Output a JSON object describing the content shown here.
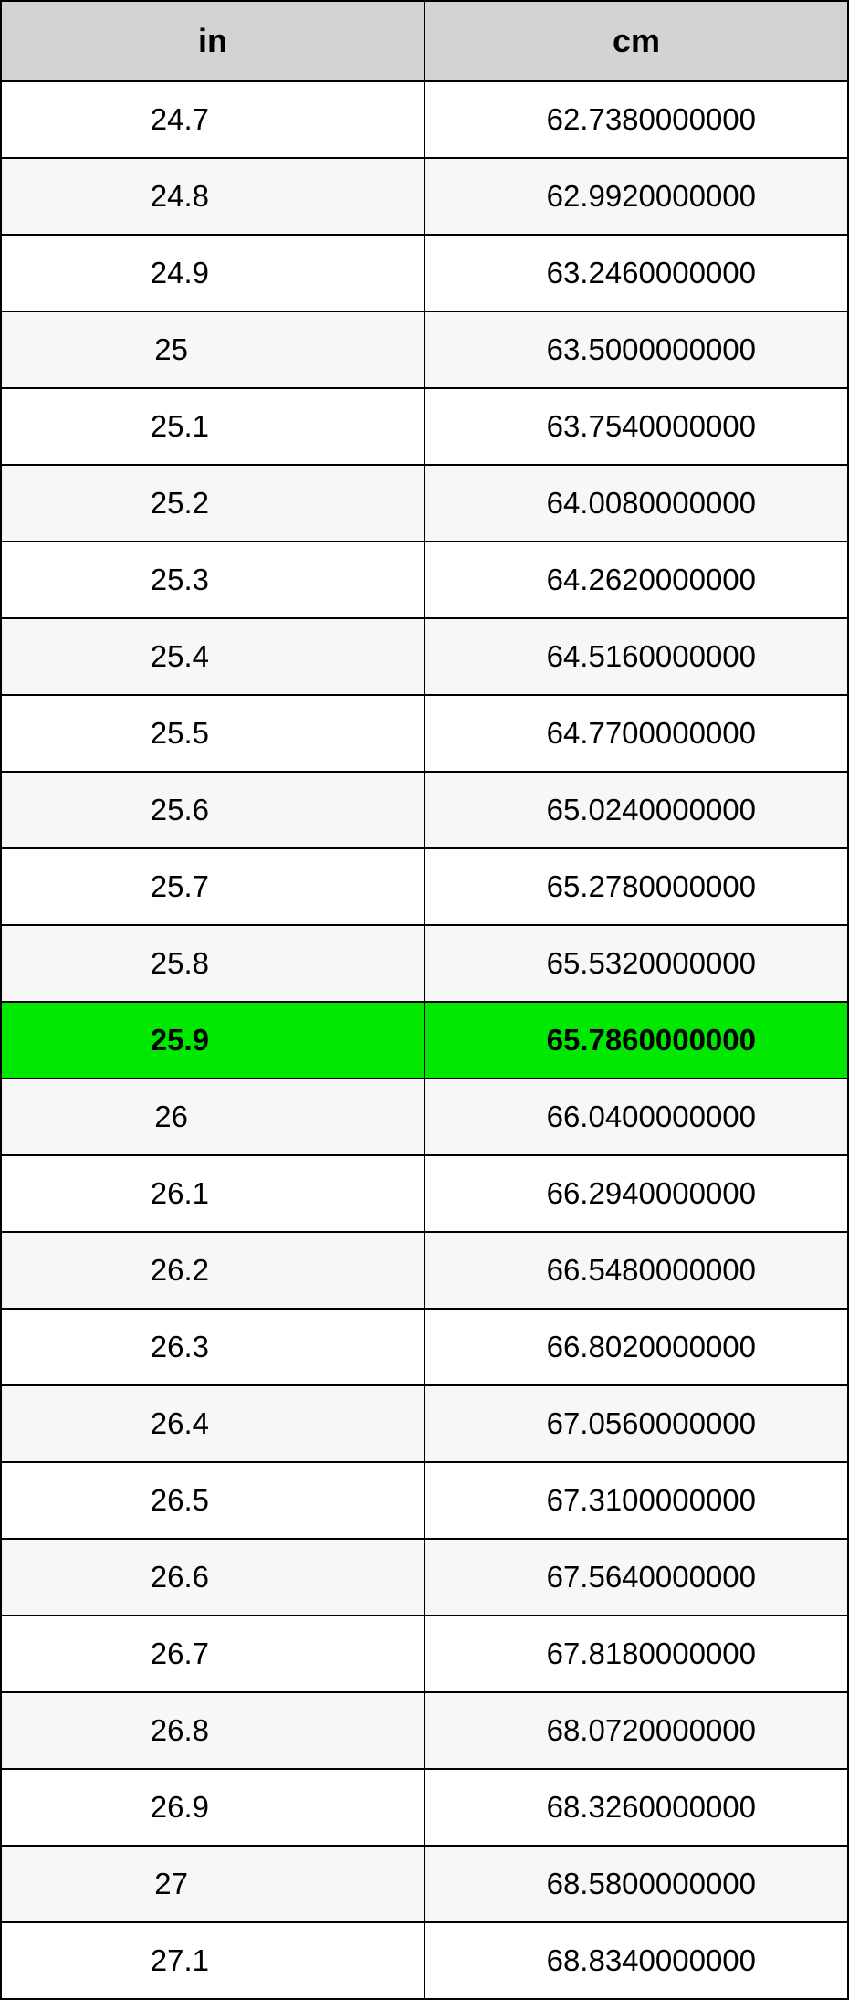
{
  "table": {
    "columns": [
      "in",
      "cm"
    ],
    "header_bg": "#d3d3d3",
    "alt_row_bg": "#f7f7f7",
    "highlight_bg": "#00e800",
    "highlight_index": 12,
    "rows": [
      {
        "in": "24.7",
        "cm": "62.7380000000"
      },
      {
        "in": "24.8",
        "cm": "62.9920000000"
      },
      {
        "in": "24.9",
        "cm": "63.2460000000"
      },
      {
        "in": "25",
        "cm": "63.5000000000"
      },
      {
        "in": "25.1",
        "cm": "63.7540000000"
      },
      {
        "in": "25.2",
        "cm": "64.0080000000"
      },
      {
        "in": "25.3",
        "cm": "64.2620000000"
      },
      {
        "in": "25.4",
        "cm": "64.5160000000"
      },
      {
        "in": "25.5",
        "cm": "64.7700000000"
      },
      {
        "in": "25.6",
        "cm": "65.0240000000"
      },
      {
        "in": "25.7",
        "cm": "65.2780000000"
      },
      {
        "in": "25.8",
        "cm": "65.5320000000"
      },
      {
        "in": "25.9",
        "cm": "65.7860000000"
      },
      {
        "in": "26",
        "cm": "66.0400000000"
      },
      {
        "in": "26.1",
        "cm": "66.2940000000"
      },
      {
        "in": "26.2",
        "cm": "66.5480000000"
      },
      {
        "in": "26.3",
        "cm": "66.8020000000"
      },
      {
        "in": "26.4",
        "cm": "67.0560000000"
      },
      {
        "in": "26.5",
        "cm": "67.3100000000"
      },
      {
        "in": "26.6",
        "cm": "67.5640000000"
      },
      {
        "in": "26.7",
        "cm": "67.8180000000"
      },
      {
        "in": "26.8",
        "cm": "68.0720000000"
      },
      {
        "in": "26.9",
        "cm": "68.3260000000"
      },
      {
        "in": "27",
        "cm": "68.5800000000"
      },
      {
        "in": "27.1",
        "cm": "68.8340000000"
      }
    ]
  }
}
